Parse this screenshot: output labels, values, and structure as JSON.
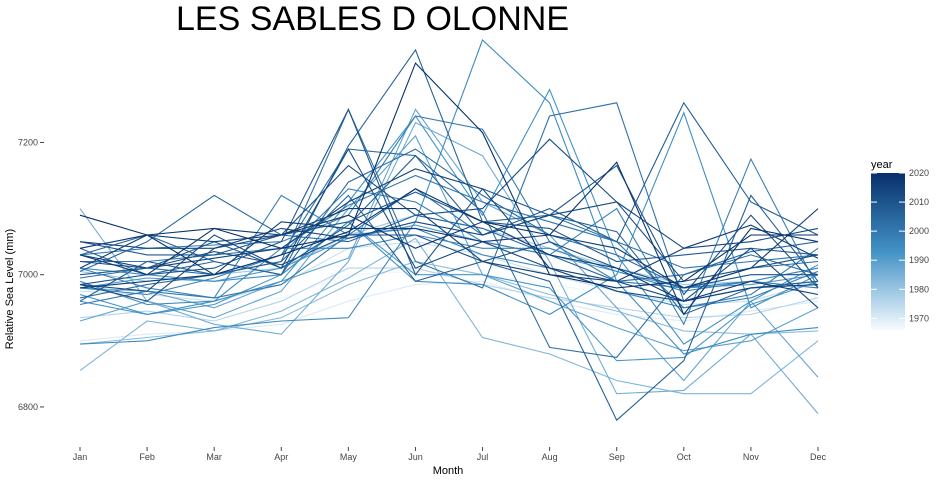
{
  "chart_data": {
    "type": "line",
    "title": "LES SABLES D OLONNE",
    "xlabel": "Month",
    "ylabel": "Relative Sea Level (mm)",
    "categories": [
      "Jan",
      "Feb",
      "Mar",
      "Apr",
      "May",
      "Jun",
      "Jul",
      "Aug",
      "Sep",
      "Oct",
      "Nov",
      "Dec"
    ],
    "ylim": [
      6750,
      7355
    ],
    "yticks": [
      6800,
      7000,
      7200
    ],
    "grid": false,
    "legend": {
      "title": "year",
      "placement": "right",
      "type": "colorbar",
      "min": 1966,
      "max": 2020,
      "ticks": [
        1970,
        1980,
        1990,
        2000,
        2010,
        2020
      ],
      "color_low": "#f7fbff",
      "color_high": "#08306b"
    },
    "series": [
      {
        "year": 1967,
        "values": [
          6960,
          6965,
          6955,
          6965,
          7000,
          7005,
          7000,
          6985,
          6970,
          6960,
          6965,
          6975
        ]
      },
      {
        "year": 1970,
        "values": [
          6900,
          6910,
          6915,
          6925,
          6960,
          6985,
          6990,
          6960,
          6940,
          6930,
          6945,
          6960
        ]
      },
      {
        "year": 1973,
        "values": [
          6975,
          6970,
          6960,
          6985,
          7040,
          7050,
          7030,
          7000,
          6975,
          6955,
          6960,
          6990
        ]
      },
      {
        "year": 1976,
        "values": [
          6935,
          6945,
          6930,
          6960,
          7010,
          7010,
          6985,
          6965,
          6950,
          6935,
          6940,
          6965
        ]
      },
      {
        "year": 1979,
        "values": [
          7005,
          6990,
          7000,
          7010,
          7060,
          7090,
          7070,
          7040,
          7010,
          6985,
          6990,
          7010
        ]
      },
      {
        "year": 1982,
        "values": [
          6895,
          6905,
          6915,
          6935,
          6985,
          7020,
          7000,
          6970,
          6945,
          6915,
          6910,
          6915
        ]
      },
      {
        "year": 1984,
        "values": [
          6855,
          6930,
          6915,
          6945,
          6995,
          7055,
          6905,
          6880,
          6840,
          6820,
          6820,
          6900
        ]
      },
      {
        "year": 1986,
        "values": [
          7100,
          6960,
          6925,
          6910,
          7020,
          7230,
          7180,
          7020,
          6820,
          6825,
          6910,
          6790
        ]
      },
      {
        "year": 1988,
        "values": [
          6980,
          6975,
          6950,
          6990,
          7025,
          7250,
          7110,
          7060,
          6950,
          6840,
          6960,
          6845
        ]
      },
      {
        "year": 1989,
        "values": [
          6930,
          6960,
          6935,
          6975,
          7100,
          7210,
          7000,
          6960,
          6920,
          6885,
          6900,
          6950
        ]
      },
      {
        "year": 1991,
        "values": [
          6980,
          6995,
          6990,
          7010,
          7055,
          7075,
          7050,
          7030,
          7005,
          6980,
          6985,
          7000
        ]
      },
      {
        "year": 1992,
        "values": [
          6960,
          6940,
          6955,
          7000,
          7080,
          7000,
          7000,
          6980,
          6870,
          6875,
          6955,
          6990
        ]
      },
      {
        "year": 1993,
        "values": [
          6970,
          6940,
          6960,
          6990,
          7110,
          7240,
          7090,
          7280,
          7030,
          6895,
          6960,
          7015
        ]
      },
      {
        "year": 1994,
        "values": [
          7010,
          7000,
          6990,
          7000,
          7080,
          6990,
          6985,
          6940,
          7000,
          7245,
          6950,
          7000
        ]
      },
      {
        "year": 1995,
        "values": [
          6895,
          6900,
          6920,
          6930,
          6935,
          7080,
          7355,
          7260,
          6990,
          6880,
          6910,
          6920
        ]
      },
      {
        "year": 1996,
        "values": [
          6990,
          6955,
          6960,
          7040,
          7040,
          7060,
          7040,
          7040,
          7005,
          6975,
          6990,
          7010
        ]
      },
      {
        "year": 1997,
        "values": [
          7010,
          6980,
          6965,
          7120,
          7060,
          7070,
          7030,
          7010,
          6975,
          6950,
          6965,
          7005
        ]
      },
      {
        "year": 1998,
        "values": [
          6980,
          6970,
          6995,
          7030,
          7130,
          7110,
          7050,
          7030,
          7100,
          6925,
          7175,
          6980
        ]
      },
      {
        "year": 1999,
        "values": [
          7030,
          7040,
          7045,
          7050,
          7090,
          7240,
          7220,
          7050,
          6990,
          6980,
          6990,
          6980
        ]
      },
      {
        "year": 2000,
        "values": [
          6955,
          6975,
          6965,
          6985,
          7060,
          7130,
          7060,
          7090,
          7050,
          6950,
          6970,
          7040
        ]
      },
      {
        "year": 2001,
        "values": [
          7020,
          7020,
          7030,
          7040,
          7105,
          7150,
          7110,
          7080,
          7050,
          7010,
          7020,
          7030
        ]
      },
      {
        "year": 2002,
        "values": [
          6995,
          7010,
          7000,
          7020,
          7250,
          7020,
          6980,
          7240,
          7260,
          6960,
          6980,
          6990
        ]
      },
      {
        "year": 2003,
        "values": [
          6965,
          6985,
          7000,
          7030,
          7190,
          7180,
          7095,
          6890,
          6875,
          7000,
          7030,
          7000
        ]
      },
      {
        "year": 2004,
        "values": [
          7030,
          7060,
          7020,
          7000,
          7140,
          7190,
          7120,
          7060,
          7030,
          6980,
          7010,
          7020
        ]
      },
      {
        "year": 2005,
        "values": [
          7005,
          7050,
          7120,
          7060,
          7050,
          7090,
          7070,
          7030,
          6990,
          7000,
          7035,
          7050
        ]
      },
      {
        "year": 2006,
        "values": [
          7040,
          7000,
          7020,
          7000,
          7195,
          7340,
          7080,
          7090,
          7065,
          6940,
          6980,
          6990
        ]
      },
      {
        "year": 2007,
        "values": [
          6960,
          7020,
          7000,
          7020,
          7120,
          6990,
          7020,
          6990,
          6780,
          6870,
          7120,
          6990
        ]
      },
      {
        "year": 2008,
        "values": [
          7000,
          7010,
          7050,
          7010,
          7075,
          7180,
          7060,
          7100,
          7050,
          7260,
          7110,
          7060
        ]
      },
      {
        "year": 2009,
        "values": [
          7050,
          7030,
          7030,
          7060,
          7080,
          7125,
          7080,
          7070,
          7020,
          7030,
          7040,
          7030
        ]
      },
      {
        "year": 2010,
        "values": [
          6985,
          7000,
          7010,
          7050,
          7250,
          7000,
          7130,
          7090,
          7165,
          6970,
          7090,
          6980
        ]
      },
      {
        "year": 2011,
        "values": [
          7020,
          7010,
          7035,
          7015,
          7060,
          7060,
          7020,
          7050,
          7010,
          6980,
          7000,
          7000
        ]
      },
      {
        "year": 2012,
        "values": [
          6985,
          6960,
          7040,
          7060,
          7165,
          7090,
          7100,
          7205,
          7110,
          6990,
          7010,
          7030
        ]
      },
      {
        "year": 2013,
        "values": [
          6985,
          6975,
          7060,
          7010,
          7190,
          7010,
          7050,
          7010,
          6975,
          6960,
          7040,
          6950
        ]
      },
      {
        "year": 2014,
        "values": [
          7050,
          7040,
          7040,
          7070,
          7055,
          7080,
          7060,
          7090,
          7110,
          7040,
          7050,
          7070
        ]
      },
      {
        "year": 2015,
        "values": [
          7030,
          7010,
          7025,
          7040,
          7110,
          7160,
          7130,
          7010,
          6990,
          6960,
          6980,
          6985
        ]
      },
      {
        "year": 2016,
        "values": [
          7010,
          7060,
          7050,
          7060,
          7100,
          7100,
          7020,
          7000,
          6990,
          7040,
          7075,
          7025
        ]
      },
      {
        "year": 2017,
        "values": [
          6980,
          6990,
          7000,
          7080,
          7070,
          7070,
          7050,
          7060,
          7040,
          6980,
          7010,
          7100
        ]
      },
      {
        "year": 2018,
        "values": [
          7030,
          7000,
          7070,
          7060,
          7090,
          7040,
          7080,
          7030,
          7010,
          6960,
          6990,
          6970
        ]
      },
      {
        "year": 2019,
        "values": [
          7040,
          7060,
          7000,
          7030,
          7065,
          7130,
          7080,
          7060,
          7170,
          6940,
          7070,
          7050
        ]
      },
      {
        "year": 2020,
        "values": [
          7090,
          7060,
          7070,
          7040,
          7060,
          7320,
          7215,
          7000,
          6980,
          6990,
          7060,
          7060
        ]
      }
    ]
  }
}
